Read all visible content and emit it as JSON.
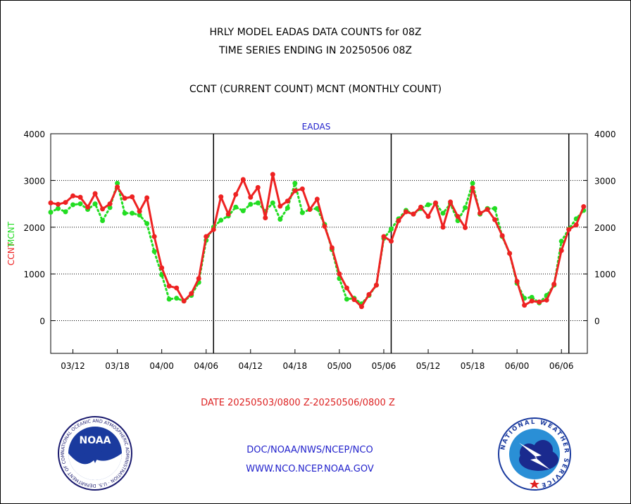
{
  "header": {
    "title_line1": "HRLY MODEL EADAS DATA COUNTS for 08Z",
    "title_line2": "TIME SERIES ENDING IN 20250506 08Z",
    "title_line3": "CCNT (CURRENT COUNT) MCNT (MONTHLY COUNT)"
  },
  "footer": {
    "date_range": "DATE 20250503/0800 Z-20250506/0800 Z",
    "link1": "DOC/NOAA/NWS/NCEP/NCO",
    "link2": "WWW.NCO.NCEP.NOAA.GOV",
    "noaa_logo_text": "NOAA",
    "noaa_ring_text": "NATIONAL OCEANIC AND ATMOSPHERIC ADMINISTRATION · U.S. DEPARTMENT OF COMMERCE ·",
    "nws_ring_text": "NATIONAL WEATHER SERVICE"
  },
  "chart_data": {
    "type": "line",
    "title": "EADAS",
    "ylabel_ccnt": "CCNT",
    "ylabel_mcnt": "MCNT",
    "ylim": [
      -700,
      4000
    ],
    "yticks": [
      0,
      1000,
      2000,
      3000,
      4000
    ],
    "ytick_labels": [
      "0",
      "1000",
      "2000",
      "3000",
      "4000"
    ],
    "xlim": [
      0,
      72.5
    ],
    "xticks": [
      {
        "x": 3,
        "label": "03/12"
      },
      {
        "x": 9,
        "label": "03/18"
      },
      {
        "x": 15,
        "label": "04/00"
      },
      {
        "x": 21,
        "label": "04/06"
      },
      {
        "x": 27,
        "label": "04/12"
      },
      {
        "x": 33,
        "label": "04/18"
      },
      {
        "x": 39,
        "label": "05/00"
      },
      {
        "x": 45,
        "label": "05/06"
      },
      {
        "x": 51,
        "label": "05/12"
      },
      {
        "x": 57,
        "label": "05/18"
      },
      {
        "x": 63,
        "label": "06/00"
      },
      {
        "x": 69,
        "label": "06/06"
      }
    ],
    "day_boundaries": [
      22,
      46,
      70
    ],
    "grid": "horizontal-dotted",
    "colors": {
      "ccnt": "#ee2222",
      "mcnt": "#22dd22",
      "axis": "#000000",
      "title": "#2222cc"
    },
    "series": [
      {
        "name": "CCNT",
        "x": [
          0,
          1,
          2,
          3,
          4,
          5,
          6,
          7,
          8,
          9,
          10,
          11,
          12,
          13,
          14,
          15,
          16,
          17,
          18,
          19,
          20,
          21,
          22,
          23,
          24,
          25,
          26,
          27,
          28,
          29,
          30,
          31,
          32,
          33,
          34,
          35,
          36,
          37,
          38,
          39,
          40,
          41,
          42,
          43,
          44,
          45,
          46,
          47,
          48,
          49,
          50,
          51,
          52,
          53,
          54,
          55,
          56,
          57,
          58,
          59,
          60,
          61,
          62,
          63,
          64,
          65,
          66,
          67,
          68,
          69,
          70,
          71,
          72
        ],
        "values": [
          2520,
          2490,
          2530,
          2670,
          2640,
          2430,
          2720,
          2390,
          2500,
          2860,
          2620,
          2650,
          2340,
          2630,
          1800,
          1130,
          740,
          700,
          420,
          580,
          900,
          1800,
          1950,
          2650,
          2280,
          2700,
          3020,
          2640,
          2850,
          2200,
          3130,
          2450,
          2560,
          2780,
          2820,
          2380,
          2600,
          2020,
          1560,
          1000,
          700,
          450,
          300,
          560,
          760,
          1800,
          1700,
          2140,
          2330,
          2280,
          2430,
          2230,
          2520,
          2000,
          2540,
          2230,
          1990,
          2840,
          2300,
          2380,
          2160,
          1820,
          1440,
          840,
          330,
          420,
          400,
          440,
          780,
          1500,
          1950,
          2050,
          2440
        ]
      },
      {
        "name": "MCNT",
        "x": [
          0,
          1,
          2,
          3,
          4,
          5,
          6,
          7,
          8,
          9,
          10,
          11,
          12,
          13,
          14,
          15,
          16,
          17,
          18,
          19,
          20,
          21,
          22,
          23,
          24,
          25,
          26,
          27,
          28,
          29,
          30,
          31,
          32,
          33,
          34,
          35,
          36,
          37,
          38,
          39,
          40,
          41,
          42,
          43,
          44,
          45,
          46,
          47,
          48,
          49,
          50,
          51,
          52,
          53,
          54,
          55,
          56,
          57,
          58,
          59,
          60,
          61,
          62,
          63,
          64,
          65,
          66,
          67,
          68,
          69,
          70,
          71,
          72
        ],
        "values": [
          2320,
          2400,
          2330,
          2480,
          2500,
          2380,
          2500,
          2140,
          2420,
          2940,
          2300,
          2300,
          2260,
          2080,
          1480,
          980,
          460,
          480,
          420,
          540,
          820,
          1720,
          2000,
          2150,
          2240,
          2430,
          2350,
          2490,
          2520,
          2340,
          2520,
          2170,
          2410,
          2940,
          2310,
          2380,
          2400,
          2060,
          1520,
          900,
          460,
          480,
          360,
          540,
          760,
          1760,
          1960,
          2180,
          2360,
          2280,
          2400,
          2480,
          2510,
          2300,
          2500,
          2140,
          2420,
          2940,
          2280,
          2400,
          2400,
          1800,
          1440,
          800,
          480,
          500,
          380,
          540,
          760,
          1700,
          1960,
          2180,
          2360
        ]
      }
    ]
  }
}
